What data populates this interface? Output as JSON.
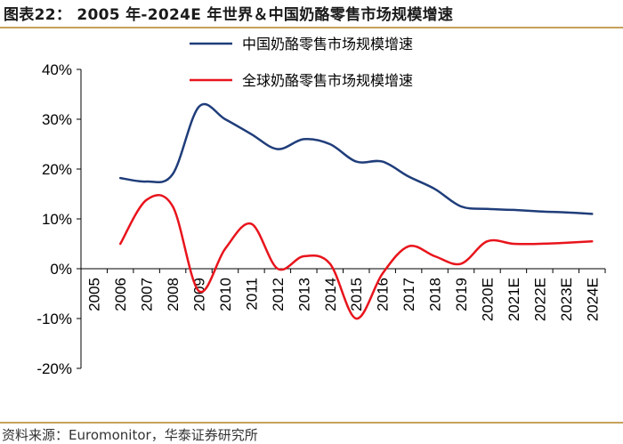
{
  "title": "图表22：  2005 年-2024E 年世界＆中国奶酪零售市场规模增速",
  "source": "资料来源：Euromonitor，华泰证券研究所",
  "chart_data": {
    "type": "line",
    "title": "2005 年-2024E 年世界＆中国奶酪零售市场规模增速",
    "xlabel": "",
    "ylabel": "",
    "ylim": [
      -20,
      40
    ],
    "yticks": [
      -20,
      -10,
      0,
      10,
      20,
      30,
      40
    ],
    "ytick_labels": [
      "-20%",
      "-10%",
      "0%",
      "10%",
      "20%",
      "30%",
      "40%"
    ],
    "categories": [
      "2005",
      "2006",
      "2007",
      "2008",
      "2009",
      "2010",
      "2011",
      "2012",
      "2013",
      "2014",
      "2015",
      "2016",
      "2017",
      "2018",
      "2019",
      "2020E",
      "2021E",
      "2022E",
      "2023E",
      "2024E"
    ],
    "grid": false,
    "legend": "top",
    "series": [
      {
        "name": "中国奶酪零售市场规模增速",
        "color": "#1f3d7a",
        "values": [
          null,
          18.2,
          17.5,
          19.0,
          32.5,
          30.0,
          27.0,
          24.0,
          26.0,
          25.0,
          21.5,
          21.5,
          18.5,
          16.0,
          12.5,
          12.0,
          11.8,
          11.5,
          11.3,
          11.0
        ]
      },
      {
        "name": "全球奶酪零售市场规模增速",
        "color": "#e8141c",
        "values": [
          null,
          5.0,
          13.8,
          12.5,
          -4.5,
          4.0,
          9.0,
          0.0,
          2.5,
          1.0,
          -10.0,
          -1.0,
          4.5,
          2.5,
          1.0,
          5.5,
          5.0,
          5.0,
          5.2,
          5.5
        ]
      }
    ]
  }
}
